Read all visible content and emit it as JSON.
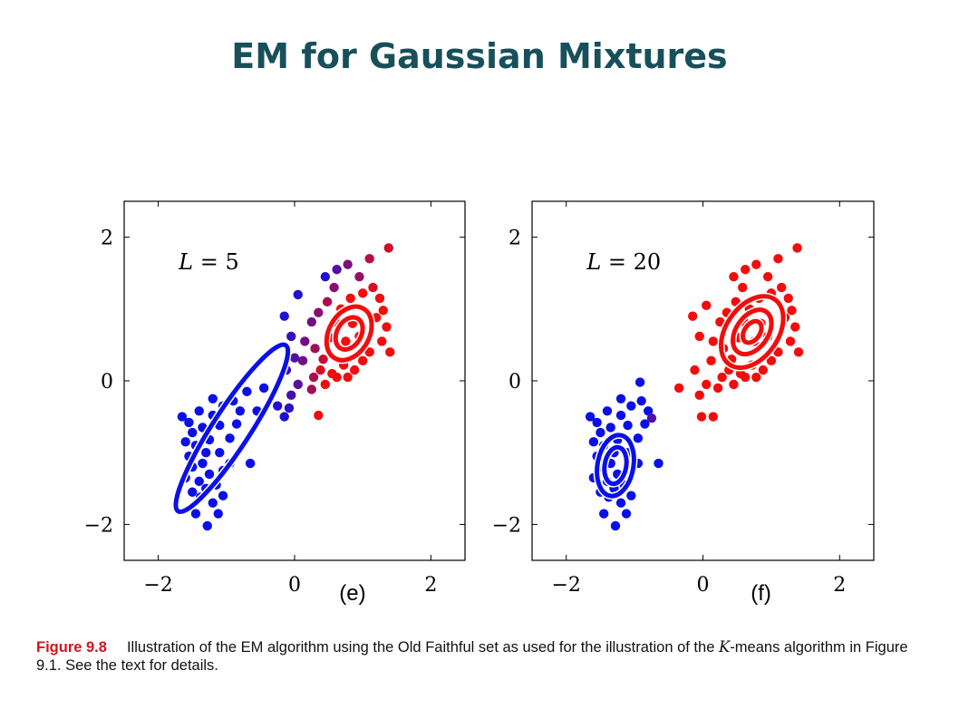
{
  "slide": {
    "title": "EM for Gaussian Mixtures"
  },
  "caption": {
    "figure_label": "Figure 9.8",
    "text_before": "Illustration of the EM algorithm using the Old Faithful set as used for the illustration of the",
    "math_var": "K",
    "text_after": "-means algorithm in Figure 9.1. See the text for details."
  },
  "chart_data": [
    {
      "type": "scatter",
      "panel_label": "(e)",
      "annotation": {
        "var": "L",
        "op": "=",
        "value": "5"
      },
      "xticks": [
        "−2",
        "0",
        "2"
      ],
      "yticks": [
        "2",
        "0",
        "−2"
      ],
      "xlim": [
        -2.5,
        2.5
      ],
      "ylim": [
        -2.5,
        2.5
      ],
      "colors": {
        "blue": "#0b10e8",
        "red": "#f20d0d"
      },
      "ellipses": [
        {
          "color": "blue",
          "cx": -0.92,
          "cy": -0.66,
          "rx": 1.45,
          "ry": 0.26,
          "angle_deg": 57,
          "rings": [
            1
          ]
        },
        {
          "color": "red",
          "cx": 0.8,
          "cy": 0.66,
          "rx": 0.42,
          "ry": 0.28,
          "angle_deg": 60,
          "rings": [
            1,
            0.6
          ]
        }
      ],
      "points": [
        {
          "x": -1.28,
          "y": -2.02,
          "c": 0
        },
        {
          "x": -1.12,
          "y": -1.85,
          "c": 0
        },
        {
          "x": -1.45,
          "y": -1.85,
          "c": 0
        },
        {
          "x": -1.2,
          "y": -1.7,
          "c": 0
        },
        {
          "x": -1.38,
          "y": -1.62,
          "c": 0
        },
        {
          "x": -1.05,
          "y": -1.6,
          "c": 0
        },
        {
          "x": -1.5,
          "y": -1.55,
          "c": 0
        },
        {
          "x": -1.3,
          "y": -1.5,
          "c": 0
        },
        {
          "x": -1.15,
          "y": -1.45,
          "c": 0
        },
        {
          "x": -1.4,
          "y": -1.4,
          "c": 0
        },
        {
          "x": -1.6,
          "y": -1.35,
          "c": 0
        },
        {
          "x": -1.25,
          "y": -1.3,
          "c": 0
        },
        {
          "x": -1.05,
          "y": -1.25,
          "c": 0
        },
        {
          "x": -1.5,
          "y": -1.2,
          "c": 0
        },
        {
          "x": -1.35,
          "y": -1.15,
          "c": 0
        },
        {
          "x": -0.95,
          "y": -1.15,
          "c": 0
        },
        {
          "x": -0.65,
          "y": -1.15,
          "c": 0
        },
        {
          "x": -1.55,
          "y": -1.05,
          "c": 0
        },
        {
          "x": -1.3,
          "y": -1.0,
          "c": 0
        },
        {
          "x": -1.1,
          "y": -1.0,
          "c": 0
        },
        {
          "x": -1.45,
          "y": -0.9,
          "c": 0
        },
        {
          "x": -1.6,
          "y": -0.85,
          "c": 0
        },
        {
          "x": -1.25,
          "y": -0.82,
          "c": 0
        },
        {
          "x": -0.95,
          "y": -0.8,
          "c": 0
        },
        {
          "x": -1.5,
          "y": -0.72,
          "c": 0
        },
        {
          "x": -1.35,
          "y": -0.65,
          "c": 0
        },
        {
          "x": -1.1,
          "y": -0.62,
          "c": 0
        },
        {
          "x": -0.85,
          "y": -0.6,
          "c": 0
        },
        {
          "x": -1.55,
          "y": -0.58,
          "c": 0
        },
        {
          "x": -1.65,
          "y": -0.5,
          "c": 0
        },
        {
          "x": -1.2,
          "y": -0.48,
          "c": 0
        },
        {
          "x": -0.8,
          "y": -0.42,
          "c": 0
        },
        {
          "x": -1.4,
          "y": -0.42,
          "c": 0
        },
        {
          "x": -0.55,
          "y": -0.42,
          "c": 0
        },
        {
          "x": -1.05,
          "y": -0.35,
          "c": 0
        },
        {
          "x": -0.9,
          "y": -0.28,
          "c": 0
        },
        {
          "x": -1.2,
          "y": -0.25,
          "c": 0
        },
        {
          "x": -0.7,
          "y": -0.15,
          "c": 0
        },
        {
          "x": -0.45,
          "y": -0.1,
          "c": 0
        },
        {
          "x": -0.25,
          "y": -0.35,
          "c": 0.1
        },
        {
          "x": -0.08,
          "y": -0.38,
          "c": 0.15
        },
        {
          "x": -0.15,
          "y": -0.5,
          "c": 0.1
        },
        {
          "x": -0.05,
          "y": -0.2,
          "c": 0.25
        },
        {
          "x": 0.05,
          "y": -0.05,
          "c": 0.35
        },
        {
          "x": -0.12,
          "y": 0.15,
          "c": 0.2
        },
        {
          "x": 0.12,
          "y": 0.28,
          "c": 0.45
        },
        {
          "x": 0.0,
          "y": 0.32,
          "c": 0.3
        },
        {
          "x": 0.28,
          "y": 0.05,
          "c": 0.7
        },
        {
          "x": 0.35,
          "y": -0.48,
          "c": 1
        },
        {
          "x": 0.25,
          "y": -0.12,
          "c": 0.65
        },
        {
          "x": 0.15,
          "y": 0.55,
          "c": 0.45
        },
        {
          "x": -0.05,
          "y": 0.62,
          "c": 0.2
        },
        {
          "x": -0.15,
          "y": 0.9,
          "c": 0.1
        },
        {
          "x": 0.05,
          "y": 1.2,
          "c": 0.1
        },
        {
          "x": 0.25,
          "y": 0.82,
          "c": 0.45
        },
        {
          "x": 0.35,
          "y": 0.95,
          "c": 0.55
        },
        {
          "x": 0.45,
          "y": 1.45,
          "c": 0.1
        },
        {
          "x": 0.62,
          "y": 1.55,
          "c": 0.3
        },
        {
          "x": 0.78,
          "y": 1.62,
          "c": 0.5
        },
        {
          "x": 1.1,
          "y": 1.7,
          "c": 0.75
        },
        {
          "x": 1.38,
          "y": 1.85,
          "c": 0.85
        },
        {
          "x": 0.95,
          "y": 1.45,
          "c": 0.6
        },
        {
          "x": 0.58,
          "y": 1.3,
          "c": 0.55
        },
        {
          "x": 0.48,
          "y": 1.1,
          "c": 0.7
        },
        {
          "x": 1.15,
          "y": 1.3,
          "c": 0.9
        },
        {
          "x": 1.25,
          "y": 1.15,
          "c": 1
        },
        {
          "x": 0.3,
          "y": 0.45,
          "c": 0.65
        },
        {
          "x": 0.52,
          "y": 0.6,
          "c": 0.85
        },
        {
          "x": 0.42,
          "y": 0.3,
          "c": 0.8
        },
        {
          "x": 0.55,
          "y": 0.1,
          "c": 1
        },
        {
          "x": 0.45,
          "y": -0.05,
          "c": 1
        },
        {
          "x": 0.62,
          "y": 0.05,
          "c": 1
        },
        {
          "x": 0.72,
          "y": 0.22,
          "c": 1
        },
        {
          "x": 0.88,
          "y": 0.15,
          "c": 1
        },
        {
          "x": 1.0,
          "y": 0.28,
          "c": 1
        },
        {
          "x": 1.1,
          "y": 0.4,
          "c": 1
        },
        {
          "x": 1.28,
          "y": 0.55,
          "c": 1
        },
        {
          "x": 1.35,
          "y": 0.75,
          "c": 1
        },
        {
          "x": 1.3,
          "y": 0.98,
          "c": 1
        },
        {
          "x": 1.2,
          "y": 0.88,
          "c": 1
        },
        {
          "x": 0.68,
          "y": 1.0,
          "c": 1
        },
        {
          "x": 0.82,
          "y": 1.15,
          "c": 1
        },
        {
          "x": 1.0,
          "y": 1.22,
          "c": 1
        },
        {
          "x": 0.6,
          "y": 0.82,
          "c": 1
        },
        {
          "x": 1.4,
          "y": 0.4,
          "c": 1
        },
        {
          "x": 0.78,
          "y": 0.05,
          "c": 1
        },
        {
          "x": 0.38,
          "y": 0.15,
          "c": 0.9
        },
        {
          "x": 0.95,
          "y": 0.62,
          "c": 1
        },
        {
          "x": 0.75,
          "y": 0.55,
          "c": 1
        },
        {
          "x": 0.85,
          "y": 0.8,
          "c": 1
        }
      ]
    },
    {
      "type": "scatter",
      "panel_label": "(f)",
      "annotation": {
        "var": "L",
        "op": "=",
        "value": "20"
      },
      "xticks": [
        "−2",
        "0",
        "2"
      ],
      "yticks": [
        "2",
        "0",
        "−2"
      ],
      "xlim": [
        -2.5,
        2.5
      ],
      "ylim": [
        -2.5,
        2.5
      ],
      "colors": {
        "blue": "#0b10e8",
        "red": "#f20d0d"
      },
      "ellipses": [
        {
          "color": "blue",
          "cx": -1.28,
          "cy": -1.18,
          "rx": 0.45,
          "ry": 0.25,
          "angle_deg": 80,
          "rings": [
            1,
            0.6
          ]
        },
        {
          "color": "red",
          "cx": 0.72,
          "cy": 0.68,
          "rx": 0.58,
          "ry": 0.36,
          "angle_deg": 55,
          "rings": [
            1,
            0.62,
            0.3
          ]
        }
      ],
      "points": [
        {
          "x": -1.28,
          "y": -2.02,
          "c": 0
        },
        {
          "x": -1.12,
          "y": -1.85,
          "c": 0
        },
        {
          "x": -1.45,
          "y": -1.85,
          "c": 0
        },
        {
          "x": -1.2,
          "y": -1.7,
          "c": 0
        },
        {
          "x": -1.38,
          "y": -1.62,
          "c": 0
        },
        {
          "x": -1.05,
          "y": -1.6,
          "c": 0
        },
        {
          "x": -1.5,
          "y": -1.55,
          "c": 0
        },
        {
          "x": -1.3,
          "y": -1.5,
          "c": 0
        },
        {
          "x": -1.15,
          "y": -1.45,
          "c": 0
        },
        {
          "x": -1.4,
          "y": -1.4,
          "c": 0
        },
        {
          "x": -1.6,
          "y": -1.35,
          "c": 0
        },
        {
          "x": -1.25,
          "y": -1.3,
          "c": 0
        },
        {
          "x": -1.05,
          "y": -1.25,
          "c": 0
        },
        {
          "x": -1.5,
          "y": -1.2,
          "c": 0
        },
        {
          "x": -1.35,
          "y": -1.15,
          "c": 0
        },
        {
          "x": -0.95,
          "y": -1.15,
          "c": 0
        },
        {
          "x": -0.65,
          "y": -1.15,
          "c": 0
        },
        {
          "x": -1.55,
          "y": -1.05,
          "c": 0
        },
        {
          "x": -1.3,
          "y": -1.0,
          "c": 0
        },
        {
          "x": -1.1,
          "y": -1.0,
          "c": 0
        },
        {
          "x": -1.45,
          "y": -0.9,
          "c": 0
        },
        {
          "x": -1.6,
          "y": -0.85,
          "c": 0
        },
        {
          "x": -1.25,
          "y": -0.82,
          "c": 0
        },
        {
          "x": -0.95,
          "y": -0.8,
          "c": 0
        },
        {
          "x": -1.5,
          "y": -0.72,
          "c": 0
        },
        {
          "x": -1.35,
          "y": -0.65,
          "c": 0
        },
        {
          "x": -1.1,
          "y": -0.62,
          "c": 0
        },
        {
          "x": -0.85,
          "y": -0.6,
          "c": 0
        },
        {
          "x": -1.55,
          "y": -0.58,
          "c": 0
        },
        {
          "x": -1.65,
          "y": -0.5,
          "c": 0
        },
        {
          "x": -1.2,
          "y": -0.48,
          "c": 0
        },
        {
          "x": -0.8,
          "y": -0.42,
          "c": 0
        },
        {
          "x": -1.4,
          "y": -0.42,
          "c": 0
        },
        {
          "x": -1.05,
          "y": -0.35,
          "c": 0
        },
        {
          "x": -0.9,
          "y": -0.28,
          "c": 0
        },
        {
          "x": -1.2,
          "y": -0.25,
          "c": 0
        },
        {
          "x": -0.92,
          "y": -0.02,
          "c": 0
        },
        {
          "x": -0.75,
          "y": -0.52,
          "c": 0.3
        },
        {
          "x": -0.35,
          "y": -0.1,
          "c": 1
        },
        {
          "x": -0.05,
          "y": -0.2,
          "c": 1
        },
        {
          "x": -0.02,
          "y": -0.5,
          "c": 1
        },
        {
          "x": 0.15,
          "y": -0.5,
          "c": 1
        },
        {
          "x": 0.05,
          "y": -0.05,
          "c": 1
        },
        {
          "x": 0.22,
          "y": -0.1,
          "c": 1
        },
        {
          "x": -0.12,
          "y": 0.15,
          "c": 1
        },
        {
          "x": 0.12,
          "y": 0.28,
          "c": 1
        },
        {
          "x": 0.28,
          "y": 0.05,
          "c": 1
        },
        {
          "x": 0.15,
          "y": 0.55,
          "c": 1
        },
        {
          "x": -0.05,
          "y": 0.62,
          "c": 1
        },
        {
          "x": -0.15,
          "y": 0.9,
          "c": 1
        },
        {
          "x": 0.05,
          "y": 1.05,
          "c": 1
        },
        {
          "x": 0.25,
          "y": 0.82,
          "c": 1
        },
        {
          "x": 0.35,
          "y": 0.95,
          "c": 1
        },
        {
          "x": 0.45,
          "y": 1.45,
          "c": 1
        },
        {
          "x": 0.62,
          "y": 1.55,
          "c": 1
        },
        {
          "x": 0.78,
          "y": 1.62,
          "c": 1
        },
        {
          "x": 1.1,
          "y": 1.7,
          "c": 1
        },
        {
          "x": 1.38,
          "y": 1.85,
          "c": 1
        },
        {
          "x": 0.95,
          "y": 1.45,
          "c": 1
        },
        {
          "x": 0.58,
          "y": 1.3,
          "c": 1
        },
        {
          "x": 0.48,
          "y": 1.1,
          "c": 1
        },
        {
          "x": 1.15,
          "y": 1.3,
          "c": 1
        },
        {
          "x": 1.25,
          "y": 1.15,
          "c": 1
        },
        {
          "x": 0.3,
          "y": 0.45,
          "c": 1
        },
        {
          "x": 0.52,
          "y": 0.6,
          "c": 1
        },
        {
          "x": 0.42,
          "y": 0.3,
          "c": 1
        },
        {
          "x": 0.55,
          "y": 0.1,
          "c": 1
        },
        {
          "x": 0.45,
          "y": -0.05,
          "c": 1
        },
        {
          "x": 0.62,
          "y": 0.05,
          "c": 1
        },
        {
          "x": 0.72,
          "y": 0.22,
          "c": 1
        },
        {
          "x": 0.88,
          "y": 0.15,
          "c": 1
        },
        {
          "x": 1.0,
          "y": 0.28,
          "c": 1
        },
        {
          "x": 1.1,
          "y": 0.4,
          "c": 1
        },
        {
          "x": 1.28,
          "y": 0.55,
          "c": 1
        },
        {
          "x": 1.35,
          "y": 0.75,
          "c": 1
        },
        {
          "x": 1.3,
          "y": 0.98,
          "c": 1
        },
        {
          "x": 1.2,
          "y": 0.88,
          "c": 1
        },
        {
          "x": 0.68,
          "y": 1.0,
          "c": 1
        },
        {
          "x": 0.82,
          "y": 1.15,
          "c": 1
        },
        {
          "x": 1.0,
          "y": 1.22,
          "c": 1
        },
        {
          "x": 0.6,
          "y": 0.82,
          "c": 1
        },
        {
          "x": 1.4,
          "y": 0.4,
          "c": 1
        },
        {
          "x": 0.78,
          "y": 0.05,
          "c": 1
        },
        {
          "x": 0.38,
          "y": 0.15,
          "c": 1
        },
        {
          "x": 0.95,
          "y": 0.62,
          "c": 1
        },
        {
          "x": 0.75,
          "y": 0.55,
          "c": 1
        },
        {
          "x": 0.85,
          "y": 0.8,
          "c": 1
        }
      ]
    }
  ]
}
